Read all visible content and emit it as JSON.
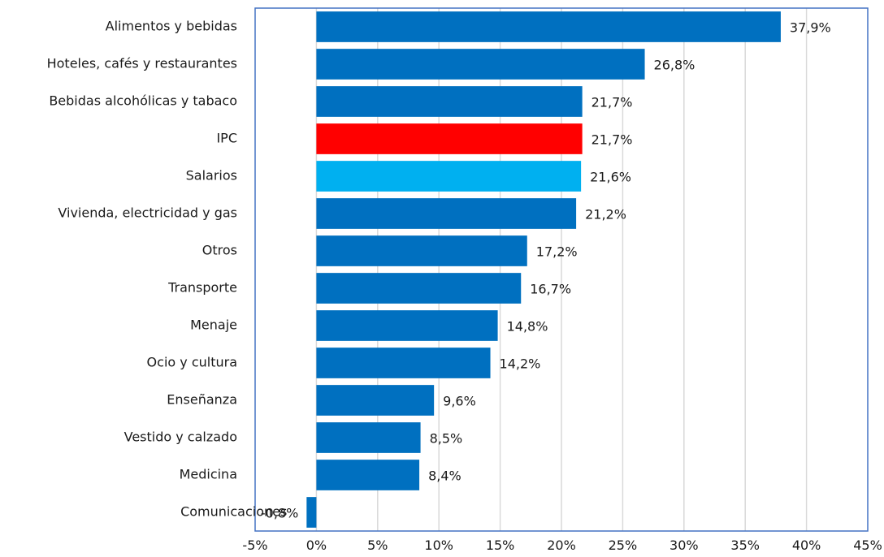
{
  "chart_data": {
    "type": "bar",
    "orientation": "horizontal",
    "title": "",
    "xlabel": "",
    "ylabel": "",
    "categories": [
      "Alimentos y bebidas",
      "Hoteles, cafés y restaurantes",
      "Bebidas alcohólicas y tabaco",
      "IPC",
      "Salarios",
      "Vivienda, electricidad y gas",
      "Otros",
      "Transporte",
      "Menaje",
      "Ocio y cultura",
      "Enseñanza",
      "Vestido y calzado",
      "Medicina",
      "Comunicaciones"
    ],
    "values": [
      37.9,
      26.8,
      21.7,
      21.7,
      21.6,
      21.2,
      17.2,
      16.7,
      14.8,
      14.2,
      9.6,
      8.5,
      8.4,
      -0.8
    ],
    "value_labels": [
      "37,9%",
      "26,8%",
      "21,7%",
      "21,7%",
      "21,6%",
      "21,2%",
      "17,2%",
      "16,7%",
      "14,8%",
      "14,2%",
      "9,6%",
      "8,5%",
      "8,4%",
      "-0,8%"
    ],
    "colors": [
      "#0070C0",
      "#0070C0",
      "#0070C0",
      "#FF0000",
      "#00B0F0",
      "#0070C0",
      "#0070C0",
      "#0070C0",
      "#0070C0",
      "#0070C0",
      "#0070C0",
      "#0070C0",
      "#0070C0",
      "#0070C0"
    ],
    "xlim": [
      -5,
      45
    ],
    "xticks": [
      -5,
      0,
      5,
      10,
      15,
      20,
      25,
      30,
      35,
      40,
      45
    ],
    "xtick_labels": [
      "-5%",
      "0%",
      "5%",
      "10%",
      "15%",
      "20%",
      "25%",
      "30%",
      "35%",
      "40%",
      "45%"
    ],
    "grid": true,
    "legend": "none",
    "plot_border_color": "#4472C4",
    "grid_color": "#D9D9D9"
  }
}
